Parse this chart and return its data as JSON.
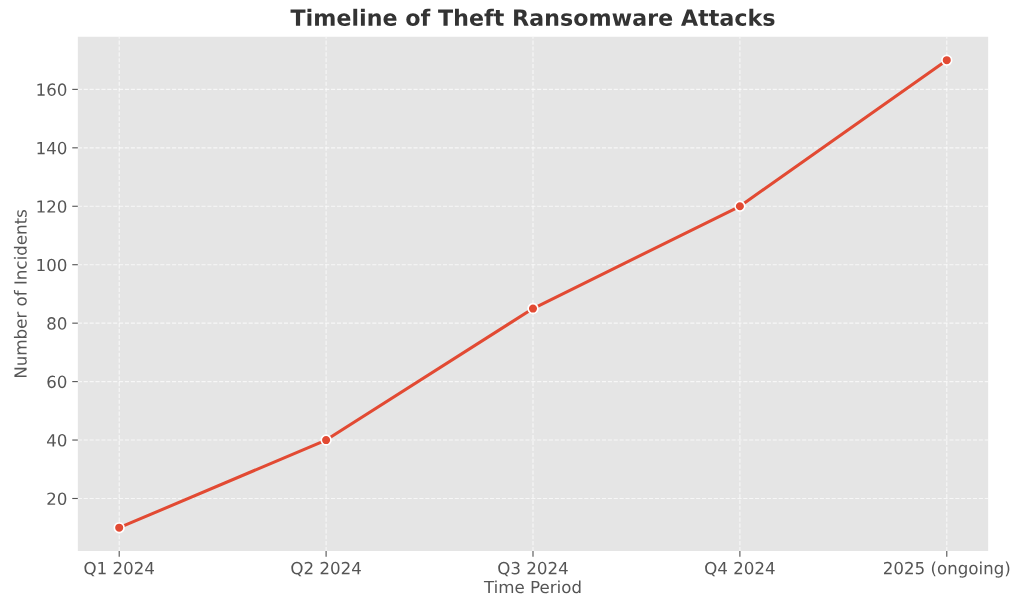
{
  "chart_data": {
    "type": "line",
    "title": "Timeline of Theft Ransomware Attacks",
    "xlabel": "Time Period",
    "ylabel": "Number of Incidents",
    "categories": [
      "Q1 2024",
      "Q2 2024",
      "Q3 2024",
      "Q4 2024",
      "2025 (ongoing)"
    ],
    "series": [
      {
        "color": "#e24a33",
        "values": [
          10,
          40,
          85,
          120,
          170
        ]
      }
    ],
    "ylim": [
      2,
      178
    ],
    "yticks": [
      20,
      40,
      60,
      80,
      100,
      120,
      140,
      160
    ],
    "grid": true,
    "marker": "circle",
    "line_style": "solid"
  }
}
